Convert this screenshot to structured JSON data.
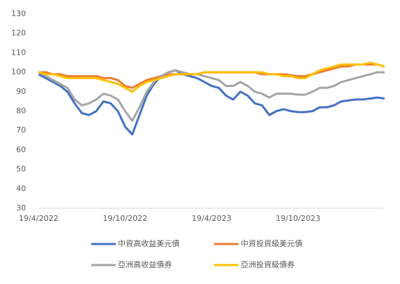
{
  "chart_data": {
    "type": "line",
    "categories": [
      "19/4/2022",
      null,
      null,
      null,
      null,
      null,
      null,
      null,
      null,
      null,
      null,
      null,
      "19/10/2022",
      null,
      null,
      null,
      null,
      null,
      null,
      null,
      null,
      null,
      null,
      null,
      "19/4/2023",
      null,
      null,
      null,
      null,
      null,
      null,
      null,
      null,
      null,
      null,
      null,
      "19/10/2023",
      null,
      null,
      null,
      null,
      null,
      null,
      null,
      null,
      null,
      null,
      null,
      null
    ],
    "series": [
      {
        "name": "中資高收益美元債",
        "color": "#4472c4",
        "values": [
          99,
          97,
          95,
          93,
          90,
          84,
          79,
          78,
          80,
          85,
          84,
          80,
          72,
          68,
          78,
          88,
          94,
          98,
          100,
          101,
          99,
          98,
          97,
          95,
          93,
          92,
          88,
          86,
          90,
          88,
          84,
          83,
          78,
          80,
          81,
          80,
          79.5,
          79.5,
          80,
          82,
          82,
          83,
          85,
          85.5,
          86,
          86,
          86.5,
          87,
          86.5
        ]
      },
      {
        "name": "中資投資級美元債",
        "color": "#ed7d31",
        "values": [
          100,
          100,
          99,
          99,
          98,
          98,
          98,
          98,
          98,
          97,
          97,
          96,
          93,
          92,
          94,
          96,
          97,
          98,
          99,
          99,
          99,
          99,
          99,
          100,
          100,
          100,
          100,
          100,
          100,
          100,
          100,
          99,
          99,
          99,
          99,
          98.5,
          98,
          98,
          99,
          100,
          101,
          102,
          103,
          103,
          104,
          104,
          104,
          104,
          103
        ]
      },
      {
        "name": "亞洲高收益債券",
        "color": "#a5a5a5",
        "values": [
          100,
          98,
          96,
          94,
          92,
          86,
          83,
          84,
          86,
          89,
          88,
          86,
          80,
          75,
          82,
          90,
          95,
          98,
          100,
          101,
          100,
          99,
          99,
          98,
          97,
          96,
          93,
          93,
          95,
          93,
          90,
          89,
          87,
          89,
          89,
          89,
          88.5,
          88.5,
          90,
          92,
          92,
          93,
          95,
          96,
          97,
          98,
          99,
          100,
          100
        ]
      },
      {
        "name": "亞洲投資級債券",
        "color": "#ffc000",
        "values": [
          100,
          99,
          99,
          98,
          97,
          97,
          97,
          97,
          97,
          96,
          95,
          94,
          92,
          90,
          93,
          95,
          96,
          97,
          98,
          99,
          99,
          99,
          99,
          100,
          100,
          100,
          100,
          100,
          100,
          100,
          100,
          100,
          99,
          99,
          98,
          98,
          97,
          97,
          99,
          101,
          102,
          103,
          104,
          104,
          104,
          104,
          105,
          104,
          103
        ]
      }
    ],
    "ylim": [
      30,
      130
    ],
    "yticks": [
      30,
      40,
      50,
      60,
      70,
      80,
      90,
      100,
      110,
      120,
      130
    ],
    "grid": false,
    "legend": "bottom"
  }
}
